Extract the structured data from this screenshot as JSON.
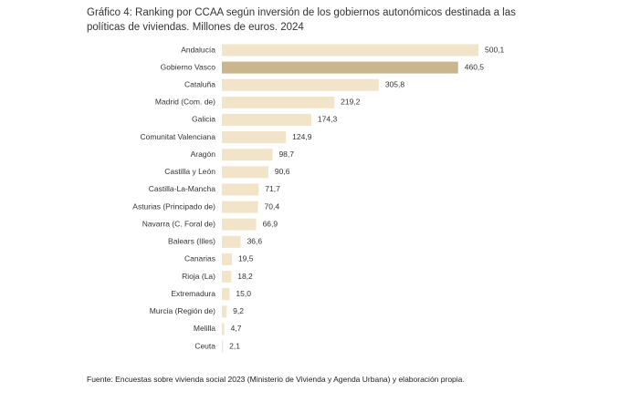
{
  "chart_data": {
    "type": "bar",
    "orientation": "horizontal",
    "title": "Gráfico 4: Ranking por CCAA según inversión de los gobiernos autonómicos destinada a las políticas de viviendas. Millones de euros.  2024",
    "categories": [
      "Andalucía",
      "Gobierno Vasco",
      "Cataluña",
      "Madrid (Com. de)",
      "Galicia",
      "Comunitat Valenciana",
      "Aragón",
      "Castilla y León",
      "Castilla-La-Mancha",
      "Asturias (Principado de)",
      "Navarra (C. Foral de)",
      "Balears (Illes)",
      "Canarias",
      "Rioja (La)",
      "Extremadura",
      "Murcia (Región de)",
      "Melilla",
      "Ceuta"
    ],
    "values": [
      500.1,
      460.5,
      305.8,
      219.2,
      174.3,
      124.9,
      98.7,
      90.6,
      71.7,
      70.4,
      66.9,
      36.6,
      19.5,
      18.2,
      15.0,
      9.2,
      4.7,
      2.1
    ],
    "value_labels": [
      "500,1",
      "460,5",
      "305,8",
      "219,2",
      "174,3",
      "124,9",
      "98,7",
      "90,6",
      "71,7",
      "70,4",
      "66,9",
      "36,6",
      "19,5",
      "18,2",
      "15,0",
      "9,2",
      "4,7",
      "2,1"
    ],
    "colors": [
      "#f1e4c9",
      "#c9b68d",
      "#f1e4c9",
      "#f1e4c9",
      "#f1e4c9",
      "#f1e4c9",
      "#f1e4c9",
      "#f1e4c9",
      "#f1e4c9",
      "#f1e4c9",
      "#f1e4c9",
      "#f1e4c9",
      "#f1e4c9",
      "#f1e4c9",
      "#f1e4c9",
      "#f1e4c9",
      "#f1e4c9",
      "#f1e4c9"
    ],
    "source": "Fuente: Encuestas sobre vivienda social 2023 (Ministerio de Vivienda y Agenda Urbana) y elaboración propia."
  }
}
